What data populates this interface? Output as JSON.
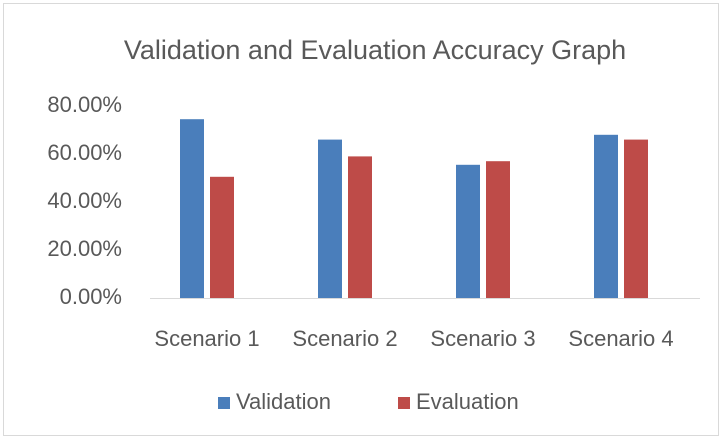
{
  "chart_data": {
    "type": "bar",
    "title": "Validation and Evaluation Accuracy Graph",
    "categories": [
      "Scenario 1",
      "Scenario 2",
      "Scenario 3",
      "Scenario 4"
    ],
    "series": [
      {
        "name": "Validation",
        "color": "#4a7ebb",
        "values": [
          74.5,
          66,
          55.5,
          68
        ]
      },
      {
        "name": "Evaluation",
        "color": "#be4b48",
        "values": [
          50.5,
          59,
          57,
          66
        ]
      }
    ],
    "ylim": [
      0,
      80
    ],
    "yticks": [
      {
        "value": 0,
        "label": "0.00%"
      },
      {
        "value": 20,
        "label": "20.00%"
      },
      {
        "value": 40,
        "label": "40.00%"
      },
      {
        "value": 60,
        "label": "60.00%"
      },
      {
        "value": 80,
        "label": "80.00%"
      }
    ],
    "grid": false,
    "legend": "bottom"
  }
}
